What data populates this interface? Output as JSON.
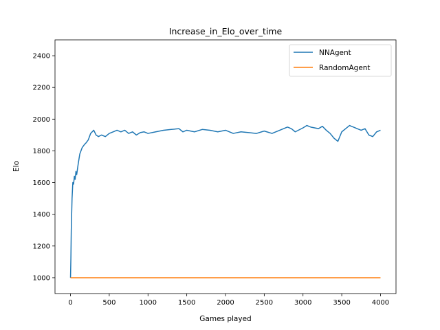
{
  "chart_data": {
    "type": "line",
    "title": "Increase_in_Elo_over_time",
    "xlabel": "Games played",
    "ylabel": "Elo",
    "xlim": [
      -200,
      4200
    ],
    "ylim": [
      900,
      2500
    ],
    "x_ticks": [
      0,
      500,
      1000,
      1500,
      2000,
      2500,
      3000,
      3500,
      4000
    ],
    "y_ticks": [
      1000,
      1200,
      1400,
      1600,
      1800,
      2000,
      2200,
      2400
    ],
    "grid": false,
    "legend_position": "top-right",
    "series": [
      {
        "name": "NNAgent",
        "color": "#1f77b4",
        "x": [
          0,
          5,
          10,
          20,
          30,
          40,
          50,
          60,
          70,
          80,
          100,
          120,
          150,
          180,
          200,
          230,
          260,
          300,
          330,
          360,
          400,
          450,
          500,
          550,
          600,
          650,
          700,
          750,
          800,
          850,
          900,
          950,
          1000,
          1100,
          1200,
          1300,
          1400,
          1450,
          1500,
          1600,
          1700,
          1800,
          1900,
          2000,
          2100,
          2200,
          2300,
          2400,
          2500,
          2600,
          2700,
          2800,
          2850,
          2900,
          3000,
          3050,
          3100,
          3200,
          3250,
          3300,
          3350,
          3400,
          3450,
          3500,
          3550,
          3600,
          3650,
          3700,
          3750,
          3800,
          3850,
          3900,
          3950,
          4000
        ],
        "y": [
          1000,
          1120,
          1300,
          1500,
          1600,
          1590,
          1640,
          1620,
          1670,
          1650,
          1720,
          1780,
          1820,
          1840,
          1850,
          1870,
          1910,
          1930,
          1900,
          1890,
          1900,
          1890,
          1910,
          1920,
          1930,
          1920,
          1930,
          1910,
          1920,
          1900,
          1915,
          1920,
          1910,
          1920,
          1930,
          1935,
          1940,
          1920,
          1930,
          1920,
          1935,
          1930,
          1920,
          1930,
          1910,
          1920,
          1915,
          1910,
          1925,
          1910,
          1930,
          1950,
          1940,
          1920,
          1945,
          1960,
          1950,
          1940,
          1955,
          1930,
          1910,
          1880,
          1860,
          1920,
          1940,
          1960,
          1950,
          1940,
          1930,
          1940,
          1900,
          1890,
          1920,
          1930
        ]
      },
      {
        "name": "RandomAgent",
        "color": "#ff7f0e",
        "x": [
          0,
          4000
        ],
        "y": [
          1000,
          1000
        ]
      }
    ]
  }
}
